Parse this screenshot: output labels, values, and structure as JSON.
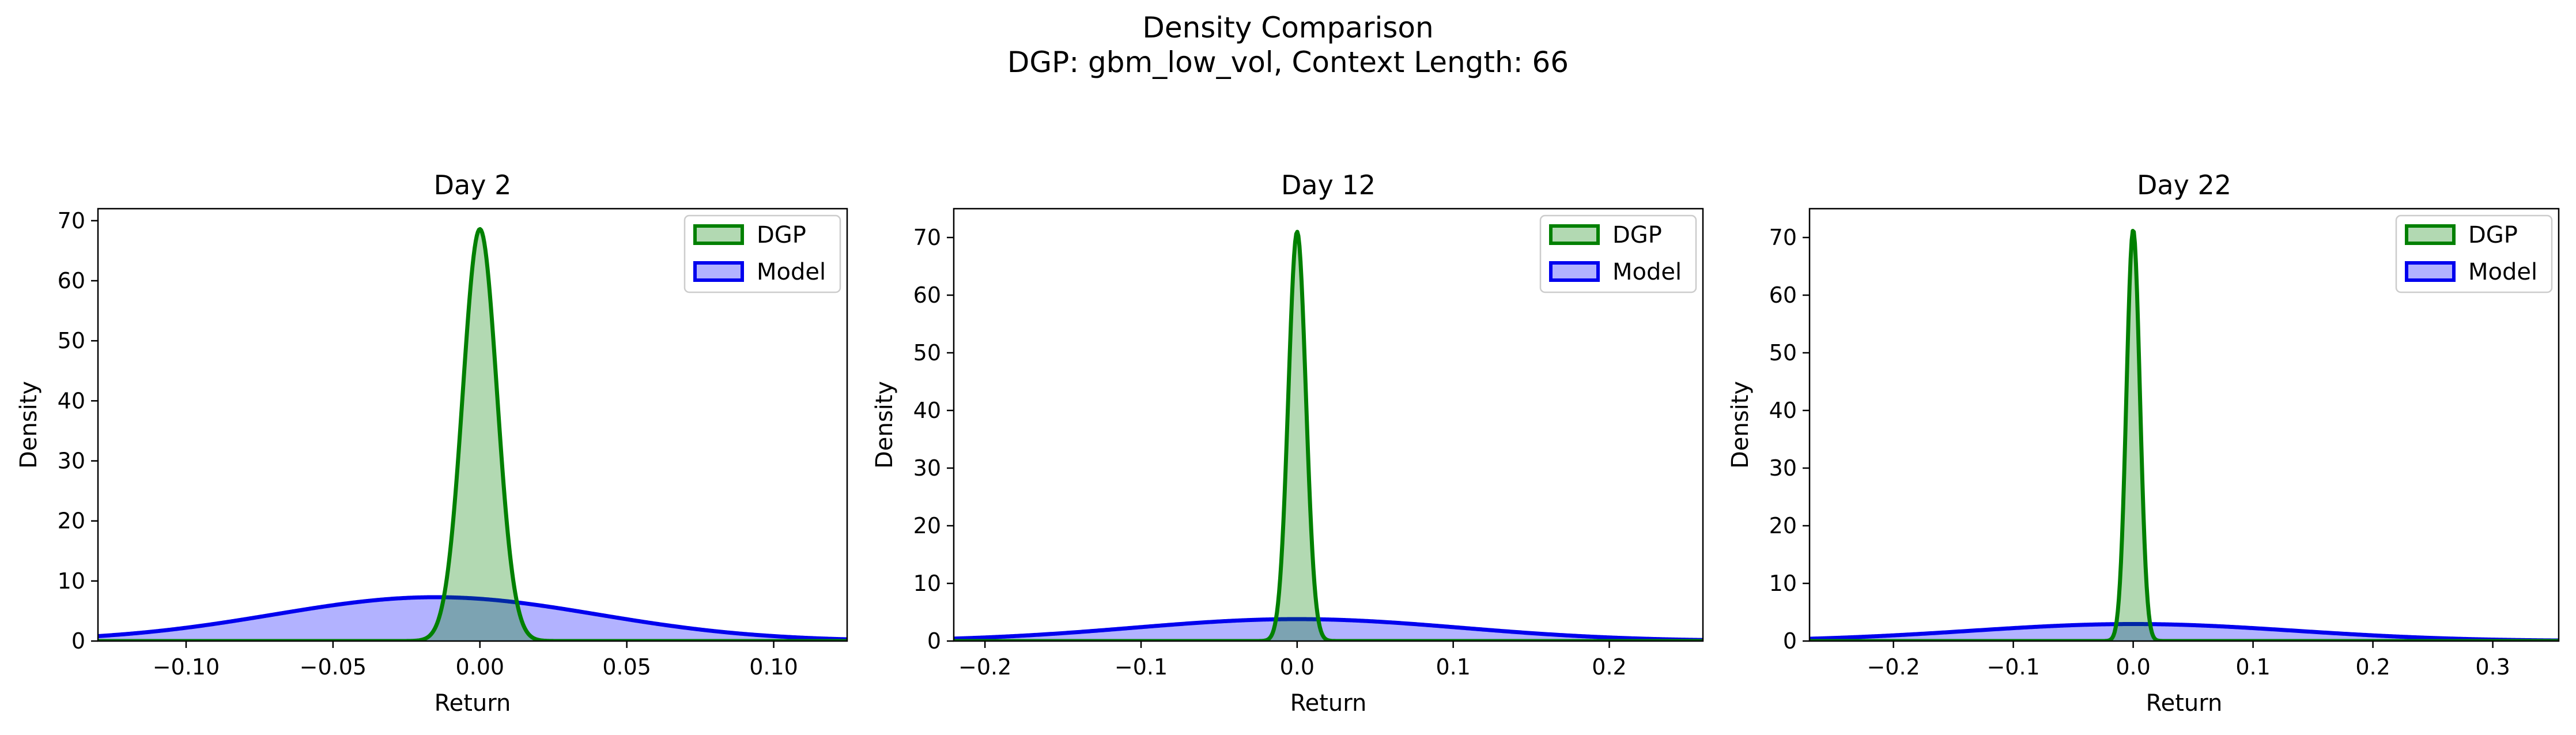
{
  "figure": {
    "title": "Density Comparison",
    "subtitle": "DGP: gbm_low_vol, Context Length: 66"
  },
  "colors": {
    "dgp_line": "#008000",
    "dgp_fill": "#b2dcb2",
    "model_line": "#0000ee",
    "model_fill": "#b0b0ff",
    "overlap_fill": "#5a82b4",
    "axes": "#000000"
  },
  "chart_data": [
    {
      "type": "area",
      "title": "Day 2",
      "xlabel": "Return",
      "ylabel": "Density",
      "xlim": [
        -0.13,
        0.125
      ],
      "ylim": [
        0,
        72
      ],
      "xticks": [
        -0.1,
        -0.05,
        0.0,
        0.05,
        0.1
      ],
      "xtick_labels": [
        "−0.10",
        "−0.05",
        "0.00",
        "0.05",
        "0.10"
      ],
      "yticks": [
        0,
        10,
        20,
        30,
        40,
        50,
        60,
        70
      ],
      "ytick_labels": [
        "0",
        "10",
        "20",
        "30",
        "40",
        "50",
        "60",
        "70"
      ],
      "legend_position": "top-right",
      "series": [
        {
          "name": "DGP",
          "distribution": "normal",
          "mean": 0.0,
          "std": 0.0058,
          "peak": 68.6
        },
        {
          "name": "Model",
          "distribution": "normal",
          "mean": -0.015,
          "std": 0.055,
          "peak": 7.3
        }
      ]
    },
    {
      "type": "area",
      "title": "Day 12",
      "xlabel": "Return",
      "ylabel": "Density",
      "xlim": [
        -0.22,
        0.26
      ],
      "ylim": [
        0,
        75
      ],
      "xticks": [
        -0.2,
        -0.1,
        0.0,
        0.1,
        0.2
      ],
      "xtick_labels": [
        "−0.2",
        "−0.1",
        "0.0",
        "0.1",
        "0.2"
      ],
      "yticks": [
        0,
        10,
        20,
        30,
        40,
        50,
        60,
        70
      ],
      "ytick_labels": [
        "0",
        "10",
        "20",
        "30",
        "40",
        "50",
        "60",
        "70"
      ],
      "legend_position": "top-right",
      "series": [
        {
          "name": "DGP",
          "distribution": "normal",
          "mean": 0.0,
          "std": 0.0056,
          "peak": 71.0
        },
        {
          "name": "Model",
          "distribution": "normal",
          "mean": 0.0,
          "std": 0.105,
          "peak": 3.8
        }
      ]
    },
    {
      "type": "area",
      "title": "Day 22",
      "xlabel": "Return",
      "ylabel": "Density",
      "xlim": [
        -0.27,
        0.355
      ],
      "ylim": [
        0,
        75
      ],
      "xticks": [
        -0.2,
        -0.1,
        0.0,
        0.1,
        0.2,
        0.3
      ],
      "xtick_labels": [
        "−0.2",
        "−0.1",
        "0.0",
        "0.1",
        "0.2",
        "0.3"
      ],
      "yticks": [
        0,
        10,
        20,
        30,
        40,
        50,
        60,
        70
      ],
      "ytick_labels": [
        "0",
        "10",
        "20",
        "30",
        "40",
        "50",
        "60",
        "70"
      ],
      "legend_position": "top-right",
      "series": [
        {
          "name": "DGP",
          "distribution": "normal",
          "mean": 0.0,
          "std": 0.0056,
          "peak": 71.3
        },
        {
          "name": "Model",
          "distribution": "normal",
          "mean": 0.0,
          "std": 0.135,
          "peak": 2.95
        }
      ]
    }
  ]
}
